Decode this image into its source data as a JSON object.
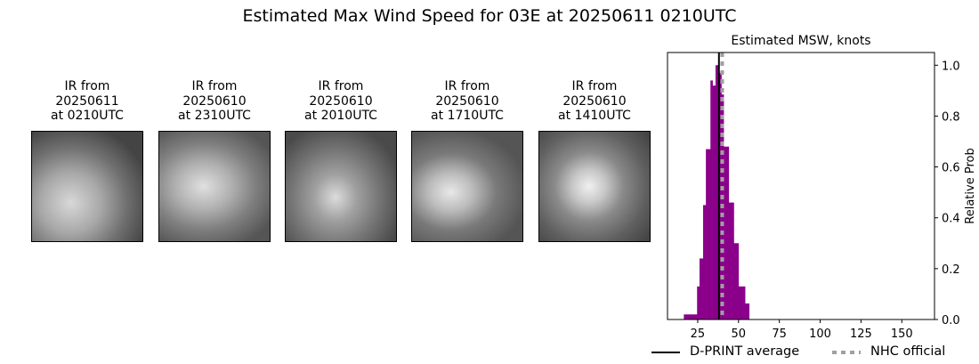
{
  "title": "Estimated Max Wind Speed for 03E at 20250611 0210UTC",
  "panels": [
    {
      "l1": "IR from",
      "l2": "20250611",
      "l3": "at 0210UTC"
    },
    {
      "l1": "IR from",
      "l2": "20250610",
      "l3": "at 2310UTC"
    },
    {
      "l1": "IR from",
      "l2": "20250610",
      "l3": "at 2010UTC"
    },
    {
      "l1": "IR from",
      "l2": "20250610",
      "l3": "at 1710UTC"
    },
    {
      "l1": "IR from",
      "l2": "20250610",
      "l3": "at 1410UTC"
    }
  ],
  "chart_data": {
    "type": "bar",
    "title": "Estimated MSW, knots",
    "ylabel": "Relative Prob",
    "xlim": [
      6.5,
      170
    ],
    "ylim": [
      0,
      1.05
    ],
    "xticks": [
      25,
      50,
      75,
      100,
      125,
      150
    ],
    "yticks": [
      0.0,
      0.2,
      0.4,
      0.6,
      0.8,
      1.0
    ],
    "bar_color": "#8b008b",
    "bins": [
      {
        "x0": 16.5,
        "x1": 24.6,
        "y": 0.02
      },
      {
        "x0": 24.6,
        "x1": 26.1,
        "y": 0.13
      },
      {
        "x0": 26.1,
        "x1": 28.3,
        "y": 0.24
      },
      {
        "x0": 28.3,
        "x1": 30.0,
        "y": 0.45
      },
      {
        "x0": 30.0,
        "x1": 32.8,
        "y": 0.67
      },
      {
        "x0": 32.8,
        "x1": 34.1,
        "y": 0.94
      },
      {
        "x0": 34.1,
        "x1": 35.9,
        "y": 0.92
      },
      {
        "x0": 35.9,
        "x1": 37.7,
        "y": 1.0
      },
      {
        "x0": 37.7,
        "x1": 39.5,
        "y": 0.97
      },
      {
        "x0": 39.5,
        "x1": 40.9,
        "y": 0.885
      },
      {
        "x0": 40.9,
        "x1": 44.0,
        "y": 0.68
      },
      {
        "x0": 44.0,
        "x1": 47.1,
        "y": 0.46
      },
      {
        "x0": 47.1,
        "x1": 50.0,
        "y": 0.3
      },
      {
        "x0": 50.0,
        "x1": 54.0,
        "y": 0.13
      },
      {
        "x0": 54.0,
        "x1": 56.5,
        "y": 0.063
      }
    ],
    "dprint_average": 38,
    "nhc_official": 40,
    "legend": {
      "dprint": "D-PRINT average",
      "nhc": "NHC official",
      "placement": "bottom"
    },
    "dprint_color": "#000000",
    "nhc_color": "#a0a0a0"
  }
}
